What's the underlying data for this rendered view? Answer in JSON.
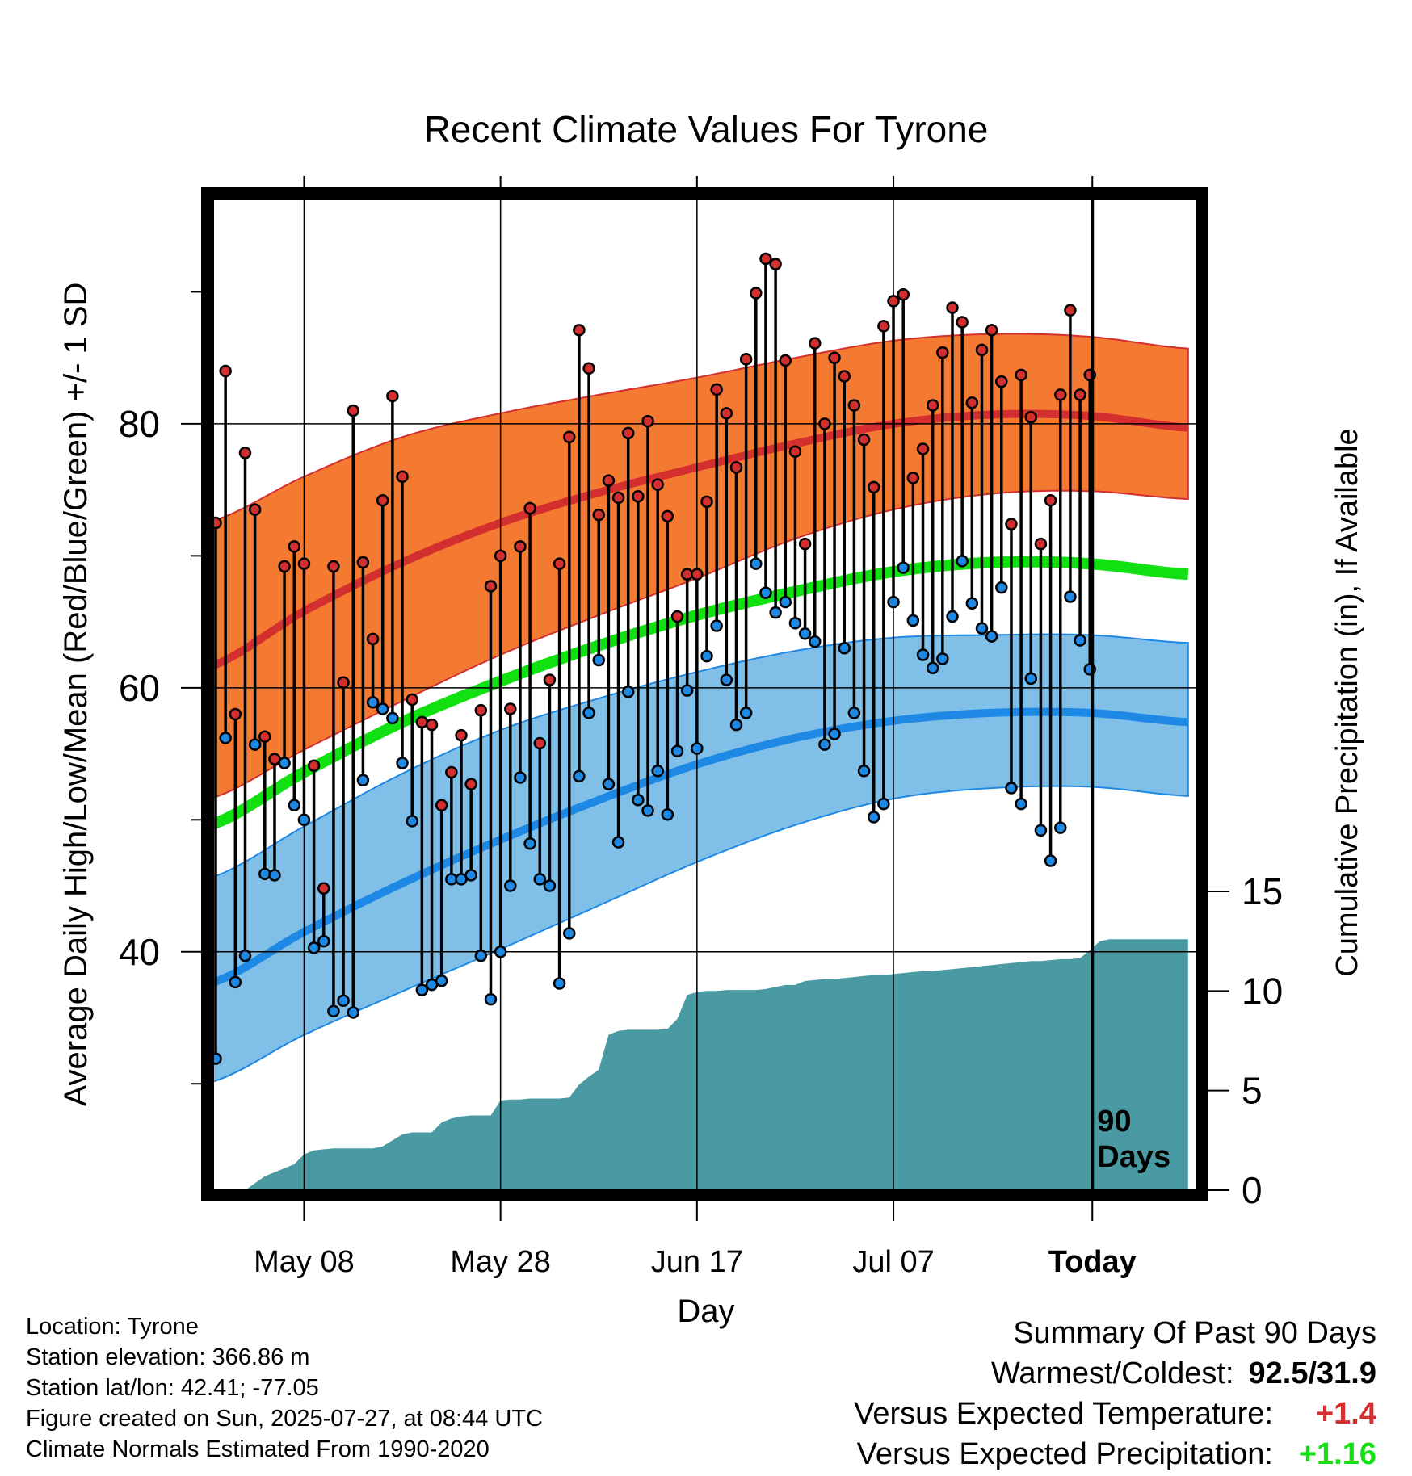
{
  "chart_data": {
    "type": "line",
    "title": "Recent Climate Values For Tyrone",
    "xlabel": "Day",
    "ylabel_left": "Average Daily High/Low/Mean (Red/Blue/Green) +/- 1 SD",
    "ylabel_right": "Cumulative Precipitation (in), If Available",
    "x_tick_labels": [
      "May 08",
      "May 28",
      "Jun 17",
      "Jul 07",
      "Today"
    ],
    "x_tick_days": [
      9,
      29,
      49,
      69,
      89
    ],
    "y_left_ticks": [
      40,
      60,
      80
    ],
    "y_left_range": [
      22,
      97
    ],
    "y_right_ticks": [
      0,
      5,
      10,
      15
    ],
    "y_right_range": [
      0,
      16
    ],
    "today_marker": "90\nDays",
    "today_day": 89,
    "colors": {
      "high": "#d32f2f",
      "high_band": "#f47a32",
      "low": "#1e88e5",
      "low_band": "#80bfe7",
      "mean": "#11e011",
      "precip": "#4a9aa4"
    },
    "normals": {
      "x": [
        -1,
        9,
        19,
        29,
        39,
        49,
        59,
        69,
        79,
        89,
        99
      ],
      "high_mean": [
        61.5,
        65.8,
        69.5,
        72.5,
        74.8,
        76.7,
        78.5,
        80,
        80.7,
        80.6,
        79.7
      ],
      "high_upper": [
        72.5,
        76,
        79,
        80.8,
        82.2,
        83.5,
        85,
        86.3,
        86.8,
        86.6,
        85.7
      ],
      "high_lower": [
        51.5,
        55.3,
        59,
        62.5,
        65.5,
        68.3,
        71.3,
        73.5,
        74.7,
        74.9,
        74.3
      ],
      "low_mean": [
        37.5,
        41.5,
        45.2,
        48.5,
        51.5,
        54.2,
        56.2,
        57.5,
        58.1,
        58.1,
        57.4
      ],
      "low_upper": [
        45.5,
        49.5,
        53.5,
        56.8,
        59.2,
        61.2,
        62.8,
        63.8,
        64,
        64,
        63.4
      ],
      "low_lower": [
        30,
        33.7,
        37,
        40.2,
        43.5,
        46.8,
        49.6,
        51.6,
        52.4,
        52.5,
        51.8
      ],
      "mean": [
        49.5,
        53.6,
        57.4,
        60.5,
        63.2,
        65.5,
        67.3,
        68.8,
        69.5,
        69.4,
        68.6
      ]
    },
    "daily_high": [
      72.5,
      84,
      58,
      77.8,
      73.5,
      56.3,
      54.6,
      69.2,
      70.7,
      69.4,
      54.1,
      44.8,
      69.2,
      60.4,
      81,
      69.5,
      63.7,
      74.2,
      82.1,
      76,
      59.1,
      57.4,
      57.2,
      51.1,
      53.6,
      56.4,
      52.7,
      58.3,
      67.7,
      70,
      58.4,
      70.7,
      73.6,
      55.8,
      60.6,
      69.4,
      79,
      87.1,
      84.2,
      73.1,
      75.7,
      74.4,
      79.3,
      74.5,
      80.2,
      75.4,
      73,
      65.4,
      68.6,
      68.6,
      74.1,
      82.6,
      80.8,
      76.7,
      84.9,
      89.9,
      92.5,
      92.1,
      84.8,
      77.9,
      70.9,
      86.1,
      80,
      85,
      83.6,
      81.4,
      78.8,
      75.2,
      87.4,
      89.3,
      89.8,
      75.9,
      78.1,
      81.4,
      85.4,
      88.8,
      87.7,
      81.6,
      85.6,
      87.1,
      83.2,
      72.4,
      83.7,
      80.5,
      70.9,
      74.2,
      82.2,
      88.6,
      82.2,
      83.7
    ],
    "daily_low": [
      31.9,
      56.2,
      37.7,
      39.7,
      55.7,
      45.9,
      45.8,
      54.3,
      51.1,
      50,
      40.3,
      40.8,
      35.5,
      36.3,
      35.4,
      53,
      58.9,
      58.4,
      57.7,
      54.3,
      49.9,
      37.1,
      37.5,
      37.8,
      45.5,
      45.5,
      45.8,
      39.7,
      36.4,
      40,
      45,
      53.2,
      48.2,
      45.5,
      45,
      37.6,
      41.4,
      53.3,
      58.1,
      62.1,
      52.7,
      48.3,
      59.7,
      51.5,
      50.7,
      53.7,
      50.4,
      55.2,
      59.8,
      55.4,
      62.4,
      64.7,
      60.6,
      57.2,
      58.1,
      69.4,
      67.2,
      65.7,
      66.5,
      64.9,
      64.1,
      63.5,
      55.7,
      56.5,
      63,
      58.1,
      53.7,
      50.2,
      51.2,
      66.5,
      69.1,
      65.1,
      62.5,
      61.5,
      62.2,
      65.4,
      69.6,
      66.4,
      64.5,
      63.9,
      67.6,
      52.4,
      51.2,
      60.7,
      49.2,
      46.9,
      49.4,
      66.9,
      63.6,
      61.4
    ],
    "precip_cumulative_x": [
      3,
      5,
      7,
      8,
      9,
      10,
      11,
      12,
      13,
      14,
      15,
      16,
      17,
      18,
      19,
      20,
      21,
      22,
      23,
      24,
      25,
      26,
      27,
      28,
      29,
      30,
      31,
      32,
      33,
      34,
      35,
      36,
      37,
      38,
      39,
      40,
      41,
      42,
      43,
      44,
      45,
      46,
      47,
      48,
      49,
      50,
      51,
      52,
      53,
      54,
      55,
      56,
      57,
      58,
      59,
      60,
      61,
      62,
      63,
      64,
      65,
      66,
      67,
      68,
      69,
      70,
      71,
      72,
      73,
      74,
      75,
      76,
      77,
      78,
      79,
      80,
      81,
      82,
      83,
      84,
      85,
      86,
      87,
      88,
      89,
      90,
      91,
      92,
      93,
      94,
      99
    ],
    "precip_cumulative": [
      0,
      0.7,
      1.1,
      1.3,
      1.8,
      2,
      2.05,
      2.1,
      2.1,
      2.1,
      2.1,
      2.1,
      2.2,
      2.5,
      2.8,
      2.9,
      2.9,
      2.9,
      3.4,
      3.6,
      3.7,
      3.75,
      3.75,
      3.75,
      4.5,
      4.55,
      4.55,
      4.6,
      4.6,
      4.6,
      4.6,
      4.65,
      5.3,
      5.7,
      6.05,
      7.8,
      8,
      8.05,
      8.05,
      8.05,
      8.05,
      8.1,
      8.6,
      9.8,
      9.95,
      10.0,
      10.0,
      10.05,
      10.05,
      10.05,
      10.05,
      10.1,
      10.2,
      10.3,
      10.3,
      10.5,
      10.55,
      10.6,
      10.6,
      10.65,
      10.7,
      10.75,
      10.8,
      10.8,
      10.85,
      10.9,
      10.95,
      11.0,
      11.0,
      11.05,
      11.1,
      11.15,
      11.2,
      11.25,
      11.3,
      11.35,
      11.4,
      11.45,
      11.5,
      11.5,
      11.55,
      11.6,
      11.6,
      11.65,
      12.05,
      12.5,
      12.6,
      12.6,
      12.6,
      12.6,
      12.6
    ]
  },
  "info": {
    "location": "Location: Tyrone",
    "elevation": "Station elevation: 366.86 m",
    "latlon": "Station lat/lon: 42.41; -77.05",
    "created": "Figure created on Sun, 2025-07-27, at 08:44 UTC",
    "normals": "Climate Normals Estimated From 1990-2020"
  },
  "summary": {
    "title": "Summary Of Past 90 Days",
    "warm_cold_label": "Warmest/Coldest:",
    "warm_cold_value": "92.5/31.9",
    "temp_label": "Versus Expected Temperature:",
    "temp_value": "+1.4",
    "temp_color": "#d32f2f",
    "precip_label": "Versus Expected Precipitation:",
    "precip_value": "+1.16",
    "precip_color": "#11e011"
  }
}
